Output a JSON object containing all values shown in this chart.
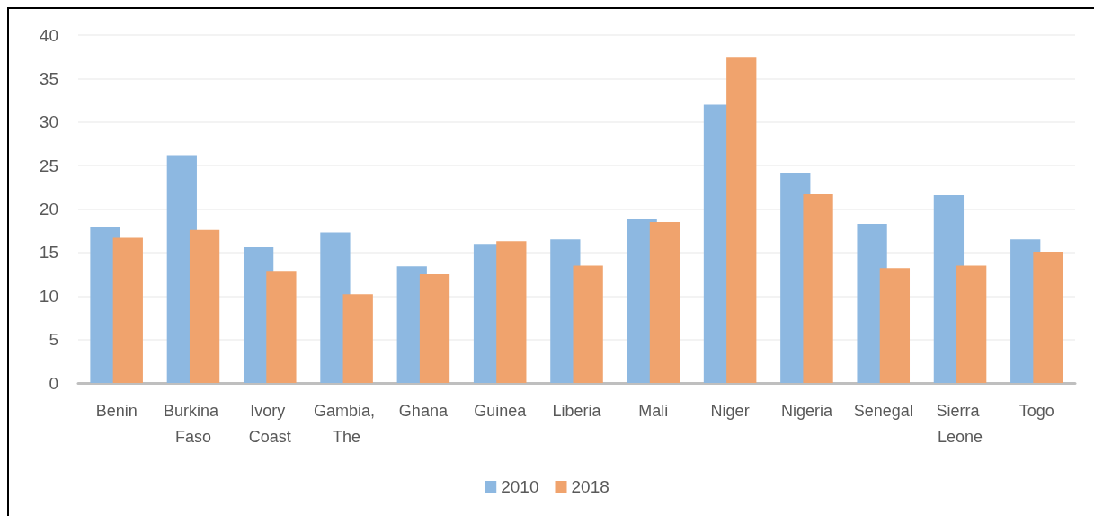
{
  "chart_data": {
    "type": "bar",
    "categories": [
      "Benin",
      "Burkina Faso",
      "Ivory Coast",
      "Gambia, The",
      "Ghana",
      "Guinea",
      "Liberia",
      "Mali",
      "Niger",
      "Nigeria",
      "Senegal",
      "Sierra Leone",
      "Togo"
    ],
    "series": [
      {
        "name": "2010",
        "color": "#8db8e1",
        "values": [
          17.9,
          26.2,
          15.6,
          17.3,
          13.4,
          16.0,
          16.5,
          18.8,
          32.0,
          24.1,
          18.3,
          21.6,
          16.5
        ]
      },
      {
        "name": "2018",
        "color": "#f0a36d",
        "values": [
          16.7,
          17.6,
          12.8,
          10.2,
          12.5,
          16.3,
          13.5,
          18.5,
          37.5,
          21.7,
          13.2,
          13.5,
          15.1
        ]
      }
    ],
    "ylim": [
      0,
      40
    ],
    "yticks": [
      0,
      5,
      10,
      15,
      20,
      25,
      30,
      35,
      40
    ],
    "grid": "y",
    "legend": "bottom"
  }
}
